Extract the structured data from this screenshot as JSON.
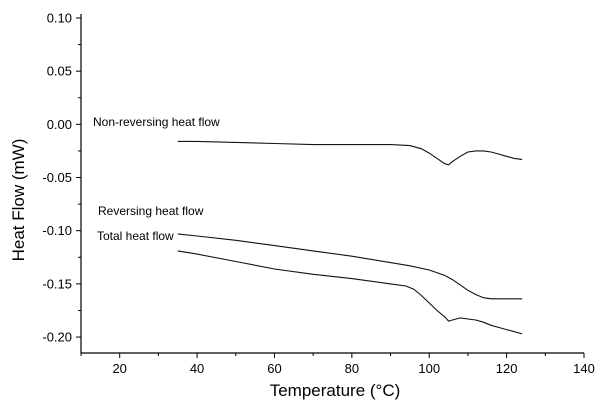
{
  "chart_data": {
    "type": "line",
    "title": "",
    "xlabel": "Temperature (°C)",
    "ylabel": "Heat Flow (mW)",
    "xlim": [
      10,
      140
    ],
    "ylim": [
      -0.215,
      0.1
    ],
    "x_ticks": [
      20,
      40,
      60,
      80,
      100,
      120,
      140
    ],
    "y_ticks": [
      0.1,
      0.05,
      0.0,
      -0.05,
      -0.1,
      -0.15,
      -0.2
    ],
    "x_tick_labels": [
      "20",
      "40",
      "60",
      "80",
      "100",
      "120",
      "140"
    ],
    "y_tick_labels": [
      "0.10",
      "0.05",
      "0.00",
      "-0.05",
      "-0.10",
      "-0.15",
      "-0.20"
    ],
    "grid": false,
    "series": [
      {
        "name": "Non-reversing heat flow",
        "x": [
          35,
          40,
          50,
          60,
          70,
          80,
          90,
          95,
          98,
          100,
          102,
          104,
          105,
          106,
          108,
          110,
          112,
          114,
          116,
          118,
          120,
          122,
          124
        ],
        "y": [
          -0.016,
          -0.016,
          -0.017,
          -0.018,
          -0.019,
          -0.019,
          -0.019,
          -0.02,
          -0.023,
          -0.027,
          -0.032,
          -0.037,
          -0.038,
          -0.035,
          -0.03,
          -0.026,
          -0.025,
          -0.025,
          -0.026,
          -0.028,
          -0.03,
          -0.032,
          -0.033
        ]
      },
      {
        "name": "Reversing heat flow",
        "x": [
          35,
          40,
          50,
          60,
          70,
          80,
          90,
          95,
          100,
          104,
          106,
          108,
          110,
          112,
          114,
          116,
          118,
          120,
          122,
          124
        ],
        "y": [
          -0.103,
          -0.105,
          -0.109,
          -0.114,
          -0.119,
          -0.124,
          -0.13,
          -0.133,
          -0.137,
          -0.142,
          -0.146,
          -0.151,
          -0.156,
          -0.16,
          -0.163,
          -0.164,
          -0.164,
          -0.164,
          -0.164,
          -0.164
        ]
      },
      {
        "name": "Total heat flow",
        "x": [
          35,
          40,
          50,
          60,
          70,
          80,
          90,
          94,
          96,
          98,
          100,
          102,
          104,
          105,
          106,
          108,
          110,
          112,
          114,
          116,
          118,
          120,
          122,
          124
        ],
        "y": [
          -0.119,
          -0.122,
          -0.129,
          -0.136,
          -0.141,
          -0.145,
          -0.15,
          -0.152,
          -0.155,
          -0.161,
          -0.168,
          -0.175,
          -0.181,
          -0.185,
          -0.184,
          -0.182,
          -0.183,
          -0.184,
          -0.186,
          -0.189,
          -0.191,
          -0.193,
          -0.195,
          -0.197
        ]
      }
    ],
    "annotations": [
      {
        "text": "Non-reversing heat flow",
        "series": 0
      },
      {
        "text": "Reversing heat flow",
        "series": 1
      },
      {
        "text": "Total heat flow",
        "series": 2
      }
    ]
  }
}
